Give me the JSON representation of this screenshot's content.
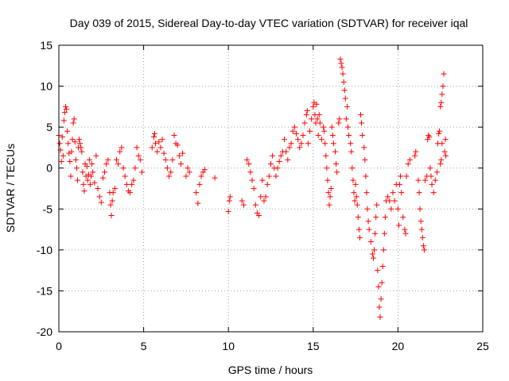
{
  "chart_data": {
    "type": "scatter",
    "title": "Day 039 of 2015, Sidereal Day-to-day VTEC variation (SDTVAR) for receiver iqal",
    "xlabel": "GPS time / hours",
    "ylabel": "SDTVAR / TECUs",
    "xlim": [
      0,
      25
    ],
    "ylim": [
      -20,
      15
    ],
    "xticks": [
      0,
      5,
      10,
      15,
      20,
      25
    ],
    "yticks": [
      -20,
      -15,
      -10,
      -5,
      0,
      5,
      10,
      15
    ],
    "xtick_labels": [
      "0",
      "5",
      "10",
      "15",
      "20",
      "25"
    ],
    "ytick_labels": [
      "-20",
      "-15",
      "-10",
      "-5",
      "0",
      "5",
      "10",
      "15"
    ],
    "grid": true,
    "marker": "+",
    "color": "#ff0000",
    "series": [
      {
        "name": "SDTVAR",
        "points": [
          [
            0.0,
            4.0
          ],
          [
            0.05,
            3.0
          ],
          [
            0.1,
            2.2
          ],
          [
            0.15,
            0.8
          ],
          [
            0.2,
            3.8
          ],
          [
            0.25,
            1.5
          ],
          [
            0.3,
            5.8
          ],
          [
            0.35,
            6.8
          ],
          [
            0.4,
            7.5
          ],
          [
            0.45,
            7.2
          ],
          [
            0.5,
            4.5
          ],
          [
            0.55,
            3.0
          ],
          [
            0.6,
            1.8
          ],
          [
            0.65,
            0.8
          ],
          [
            0.7,
            -1.0
          ],
          [
            0.75,
            2.0
          ],
          [
            0.8,
            3.5
          ],
          [
            0.85,
            5.5
          ],
          [
            0.9,
            6.0
          ],
          [
            0.95,
            3.2
          ],
          [
            1.0,
            1.0
          ],
          [
            1.05,
            0.0
          ],
          [
            1.1,
            -1.5
          ],
          [
            1.15,
            2.5
          ],
          [
            1.2,
            3.5
          ],
          [
            1.25,
            3.0
          ],
          [
            1.3,
            2.5
          ],
          [
            1.35,
            2.0
          ],
          [
            1.4,
            -0.5
          ],
          [
            1.45,
            -2.0
          ],
          [
            1.5,
            -2.8
          ],
          [
            1.55,
            0.5
          ],
          [
            1.6,
            -1.0
          ],
          [
            1.65,
            0.2
          ],
          [
            1.7,
            -1.5
          ],
          [
            1.75,
            -0.8
          ],
          [
            1.8,
            1.0
          ],
          [
            1.85,
            -2.0
          ],
          [
            1.9,
            -1.0
          ],
          [
            1.95,
            0.5
          ],
          [
            2.0,
            -0.5
          ],
          [
            2.1,
            -1.8
          ],
          [
            2.2,
            1.5
          ],
          [
            2.3,
            -2.5
          ],
          [
            2.4,
            -3.5
          ],
          [
            2.5,
            -4.2
          ],
          [
            2.6,
            -1.2
          ],
          [
            2.7,
            -0.5
          ],
          [
            2.8,
            0.5
          ],
          [
            2.9,
            1.0
          ],
          [
            3.0,
            -3.0
          ],
          [
            3.05,
            -4.5
          ],
          [
            3.1,
            -5.8
          ],
          [
            3.15,
            -4.0
          ],
          [
            3.2,
            -3.0
          ],
          [
            3.3,
            -2.5
          ],
          [
            3.4,
            1.0
          ],
          [
            3.5,
            0.5
          ],
          [
            3.6,
            2.0
          ],
          [
            3.7,
            2.5
          ],
          [
            3.8,
            0.0
          ],
          [
            3.9,
            -1.0
          ],
          [
            4.0,
            -2.0
          ],
          [
            4.1,
            -2.8
          ],
          [
            4.2,
            -3.0
          ],
          [
            4.3,
            -2.0
          ],
          [
            4.4,
            -1.5
          ],
          [
            4.5,
            0.0
          ],
          [
            4.6,
            2.5
          ],
          [
            4.7,
            1.5
          ],
          [
            4.8,
            1.0
          ],
          [
            4.9,
            -0.5
          ],
          [
            5.5,
            2.5
          ],
          [
            5.6,
            3.8
          ],
          [
            5.65,
            4.2
          ],
          [
            5.7,
            3.0
          ],
          [
            5.8,
            2.0
          ],
          [
            5.9,
            3.2
          ],
          [
            6.0,
            2.5
          ],
          [
            6.1,
            3.5
          ],
          [
            6.2,
            1.8
          ],
          [
            6.3,
            1.0
          ],
          [
            6.4,
            0.0
          ],
          [
            6.5,
            -1.0
          ],
          [
            6.6,
            -0.5
          ],
          [
            6.7,
            1.0
          ],
          [
            6.8,
            4.0
          ],
          [
            6.9,
            3.0
          ],
          [
            7.0,
            2.8
          ],
          [
            7.1,
            1.5
          ],
          [
            7.2,
            0.5
          ],
          [
            7.3,
            1.8
          ],
          [
            7.5,
            -1.0
          ],
          [
            7.6,
            0.0
          ],
          [
            7.7,
            -0.5
          ],
          [
            8.1,
            -3.0
          ],
          [
            8.2,
            -4.3
          ],
          [
            8.3,
            -2.0
          ],
          [
            8.4,
            -1.0
          ],
          [
            8.5,
            -0.5
          ],
          [
            8.6,
            -0.2
          ],
          [
            9.2,
            -1.2
          ],
          [
            10.0,
            -5.3
          ],
          [
            10.05,
            -4.0
          ],
          [
            10.1,
            -3.5
          ],
          [
            10.8,
            -4.0
          ],
          [
            10.9,
            -4.5
          ],
          [
            11.1,
            1.0
          ],
          [
            11.2,
            0.5
          ],
          [
            11.3,
            -0.5
          ],
          [
            11.4,
            -1.5
          ],
          [
            11.5,
            -2.5
          ],
          [
            11.6,
            -4.5
          ],
          [
            11.7,
            -5.5
          ],
          [
            11.8,
            -5.8
          ],
          [
            11.9,
            -3.5
          ],
          [
            12.0,
            -1.5
          ],
          [
            12.1,
            -4.0
          ],
          [
            12.2,
            -3.5
          ],
          [
            12.3,
            -2.0
          ],
          [
            12.4,
            -1.0
          ],
          [
            12.5,
            0.5
          ],
          [
            12.6,
            1.5
          ],
          [
            12.7,
            0.0
          ],
          [
            12.8,
            -1.0
          ],
          [
            12.9,
            0.0
          ],
          [
            13.0,
            0.8
          ],
          [
            13.1,
            1.5
          ],
          [
            13.2,
            2.0
          ],
          [
            13.3,
            3.5
          ],
          [
            13.4,
            2.0
          ],
          [
            13.5,
            1.0
          ],
          [
            13.6,
            2.5
          ],
          [
            13.7,
            3.0
          ],
          [
            13.8,
            4.5
          ],
          [
            13.9,
            5.0
          ],
          [
            14.0,
            4.2
          ],
          [
            14.1,
            3.5
          ],
          [
            14.2,
            2.5
          ],
          [
            14.3,
            3.0
          ],
          [
            14.4,
            4.0
          ],
          [
            14.5,
            5.5
          ],
          [
            14.6,
            6.5
          ],
          [
            14.65,
            7.0
          ],
          [
            14.7,
            3.0
          ],
          [
            14.8,
            4.5
          ],
          [
            14.9,
            6.0
          ],
          [
            15.0,
            7.5
          ],
          [
            15.05,
            8.0
          ],
          [
            15.1,
            6.5
          ],
          [
            15.15,
            5.5
          ],
          [
            15.2,
            7.8
          ],
          [
            15.25,
            6.0
          ],
          [
            15.3,
            4.0
          ],
          [
            15.35,
            6.5
          ],
          [
            15.4,
            5.5
          ],
          [
            15.5,
            3.5
          ],
          [
            15.6,
            5.0
          ],
          [
            15.65,
            4.5
          ],
          [
            15.7,
            3.0
          ],
          [
            15.75,
            1.5
          ],
          [
            15.8,
            0.0
          ],
          [
            15.85,
            -1.5
          ],
          [
            15.9,
            -3.0
          ],
          [
            15.95,
            -4.5
          ],
          [
            16.0,
            -3.5
          ],
          [
            16.05,
            -2.5
          ],
          [
            16.1,
            5.0
          ],
          [
            16.15,
            4.0
          ],
          [
            16.2,
            3.0
          ],
          [
            16.3,
            2.0
          ],
          [
            16.35,
            0.5
          ],
          [
            16.4,
            -0.5
          ],
          [
            16.5,
            5.5
          ],
          [
            16.55,
            6.0
          ],
          [
            16.6,
            13.3
          ],
          [
            16.65,
            12.8
          ],
          [
            16.7,
            12.3
          ],
          [
            16.75,
            11.5
          ],
          [
            16.8,
            10.5
          ],
          [
            16.85,
            9.5
          ],
          [
            16.9,
            8.5
          ],
          [
            17.0,
            7.5
          ],
          [
            16.95,
            6.0
          ],
          [
            17.05,
            5.0
          ],
          [
            17.1,
            4.0
          ],
          [
            17.2,
            3.0
          ],
          [
            17.25,
            2.0
          ],
          [
            17.3,
            0.0
          ],
          [
            17.35,
            -1.5
          ],
          [
            17.4,
            -3.0
          ],
          [
            17.45,
            -4.0
          ],
          [
            17.5,
            -2.0
          ],
          [
            17.55,
            -3.5
          ],
          [
            17.6,
            -4.5
          ],
          [
            17.65,
            -6.0
          ],
          [
            17.7,
            -7.5
          ],
          [
            17.75,
            -8.5
          ],
          [
            17.8,
            6.5
          ],
          [
            17.85,
            5.5
          ],
          [
            17.9,
            4.0
          ],
          [
            18.0,
            2.5
          ],
          [
            18.05,
            1.0
          ],
          [
            18.1,
            -1.0
          ],
          [
            18.15,
            -3.0
          ],
          [
            18.2,
            -5.0
          ],
          [
            18.25,
            -6.5
          ],
          [
            18.3,
            -7.5
          ],
          [
            18.4,
            -9.0
          ],
          [
            18.5,
            -10.5
          ],
          [
            18.55,
            -11.0
          ],
          [
            18.6,
            -10.0
          ],
          [
            18.65,
            -8.0
          ],
          [
            18.7,
            -6.0
          ],
          [
            18.75,
            -4.5
          ],
          [
            18.8,
            -12.5
          ],
          [
            18.85,
            -14.5
          ],
          [
            18.9,
            -17.0
          ],
          [
            18.95,
            -18.2
          ],
          [
            19.0,
            -16.0
          ],
          [
            19.05,
            -14.0
          ],
          [
            19.1,
            -12.0
          ],
          [
            19.15,
            -10.0
          ],
          [
            19.2,
            -8.0
          ],
          [
            19.25,
            -6.0
          ],
          [
            19.3,
            -4.0
          ],
          [
            19.4,
            -3.5
          ],
          [
            19.5,
            -4.0
          ],
          [
            19.6,
            -5.0
          ],
          [
            19.7,
            -3.0
          ],
          [
            19.8,
            -4.0
          ],
          [
            19.9,
            -2.0
          ],
          [
            20.0,
            -5.0
          ],
          [
            20.05,
            -7.0
          ],
          [
            20.1,
            -2.0
          ],
          [
            20.15,
            -1.0
          ],
          [
            20.2,
            -3.0
          ],
          [
            20.3,
            -6.0
          ],
          [
            20.4,
            -7.5
          ],
          [
            20.45,
            -8.0
          ],
          [
            20.5,
            -1.0
          ],
          [
            20.6,
            0.5
          ],
          [
            20.7,
            1.0
          ],
          [
            21.0,
            1.5
          ],
          [
            21.05,
            2.0
          ],
          [
            21.2,
            -1.5
          ],
          [
            21.25,
            -3.0
          ],
          [
            21.3,
            -5.0
          ],
          [
            21.35,
            -6.5
          ],
          [
            21.4,
            -7.5
          ],
          [
            21.45,
            -8.5
          ],
          [
            21.5,
            -9.5
          ],
          [
            21.55,
            -10.0
          ],
          [
            21.6,
            -1.5
          ],
          [
            21.7,
            -1.0
          ],
          [
            21.75,
            3.5
          ],
          [
            21.8,
            4.0
          ],
          [
            21.85,
            3.8
          ],
          [
            21.9,
            0.0
          ],
          [
            21.95,
            -1.0
          ],
          [
            22.0,
            -2.0
          ],
          [
            22.1,
            -3.0
          ],
          [
            22.2,
            -1.5
          ],
          [
            22.3,
            -0.5
          ],
          [
            22.35,
            3.0
          ],
          [
            22.4,
            4.2
          ],
          [
            22.45,
            4.5
          ],
          [
            22.5,
            7.5
          ],
          [
            22.55,
            8.0
          ],
          [
            22.6,
            9.0
          ],
          [
            22.65,
            10.0
          ],
          [
            22.7,
            11.5
          ],
          [
            22.75,
            2.0
          ],
          [
            22.8,
            3.5
          ],
          [
            22.82,
            1.5
          ],
          [
            22.6,
            3.0
          ],
          [
            22.55,
            1.0
          ],
          [
            22.5,
            0.5
          ]
        ]
      }
    ]
  }
}
